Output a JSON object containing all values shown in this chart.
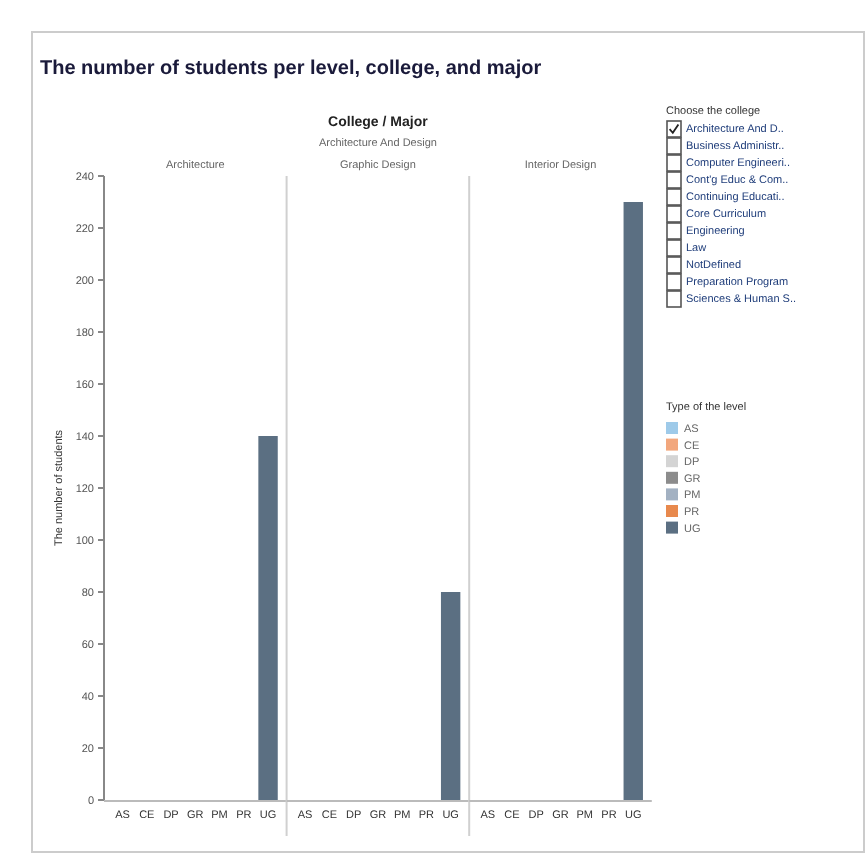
{
  "chart_data": [
    {
      "type": "bar",
      "title": "The number of students per level, college, and major",
      "subtitle": "Architecture",
      "ylabel": "The number of students",
      "annotations": [
        "College / Major",
        "Architecture And Design"
      ],
      "categories": [
        "AS",
        "CE",
        "DP",
        "GR",
        "PM",
        "PR",
        "UG"
      ],
      "series": [
        {
          "name": "AS",
          "color": "#9ecae9",
          "values": [
            null,
            null,
            null,
            null,
            null,
            null,
            null
          ]
        },
        {
          "name": "CE",
          "color": "#f2a77d",
          "values": [
            null,
            null,
            null,
            null,
            null,
            null,
            null
          ]
        },
        {
          "name": "DP",
          "color": "#d4d4d4",
          "values": [
            null,
            null,
            null,
            null,
            null,
            null,
            null
          ]
        },
        {
          "name": "GR",
          "color": "#8c8c8c",
          "values": [
            null,
            null,
            null,
            null,
            null,
            null,
            null
          ]
        },
        {
          "name": "PM",
          "color": "#a3b1c2",
          "values": [
            null,
            null,
            null,
            null,
            null,
            null,
            null
          ]
        },
        {
          "name": "PR",
          "color": "#e8894d",
          "values": [
            null,
            null,
            null,
            null,
            null,
            null,
            null
          ]
        },
        {
          "name": "UG",
          "color": "#5b6f82",
          "values": [
            null,
            null,
            null,
            null,
            null,
            null,
            140
          ]
        }
      ],
      "ylim": [
        0,
        240
      ],
      "yticks": [
        0,
        20,
        40,
        60,
        80,
        100,
        120,
        140,
        160,
        180,
        200,
        220,
        240
      ],
      "legend": "right",
      "legend_title": "Type of the level"
    },
    {
      "type": "bar",
      "subtitle": "Graphic Design",
      "categories": [
        "AS",
        "CE",
        "DP",
        "GR",
        "PM",
        "PR",
        "UG"
      ],
      "values": [
        null,
        null,
        null,
        null,
        null,
        null,
        80
      ],
      "color": "#5b6f82",
      "ylim": [
        0,
        240
      ],
      "tick_labels": "x"
    },
    {
      "type": "bar",
      "subtitle": "Interior Design",
      "categories": [
        "AS",
        "CE",
        "DP",
        "GR",
        "PM",
        "PR",
        "UG"
      ],
      "values": [
        null,
        null,
        null,
        null,
        null,
        null,
        230
      ],
      "color": "#5b6f82",
      "ylim": [
        0,
        240
      ],
      "tick_labels": "x"
    },
    {
      "type": "other",
      "title": "Choose the college",
      "annotations": [
        "Architecture And D..",
        "Business Administr..",
        "Computer Engineeri..",
        "Cont'g Educ & Com..",
        "Continuing Educati..",
        "Core Curriculum",
        "Engineering",
        "Law",
        "NotDefined",
        "Preparation Program",
        "Sciences & Human S.."
      ]
    }
  ]
}
